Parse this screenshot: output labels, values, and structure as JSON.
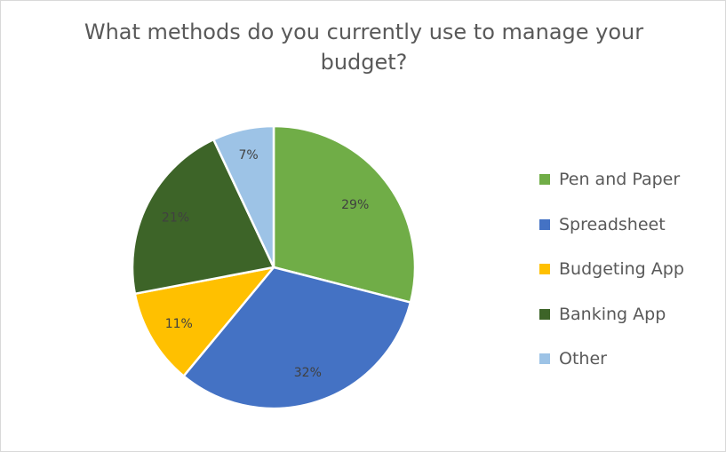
{
  "chart_data": {
    "type": "pie",
    "title": "What methods do you currently use to manage your budget?",
    "categories": [
      "Pen and Paper",
      "Spreadsheet",
      "Budgeting App",
      "Banking App",
      "Other"
    ],
    "values": [
      29,
      32,
      11,
      21,
      7
    ],
    "data_labels": [
      "29%",
      "32%",
      "11%",
      "21%",
      "7%"
    ],
    "colors": [
      "#70ad47",
      "#4472c4",
      "#ffc000",
      "#3d6428",
      "#9dc3e6"
    ],
    "legend_position": "right"
  }
}
